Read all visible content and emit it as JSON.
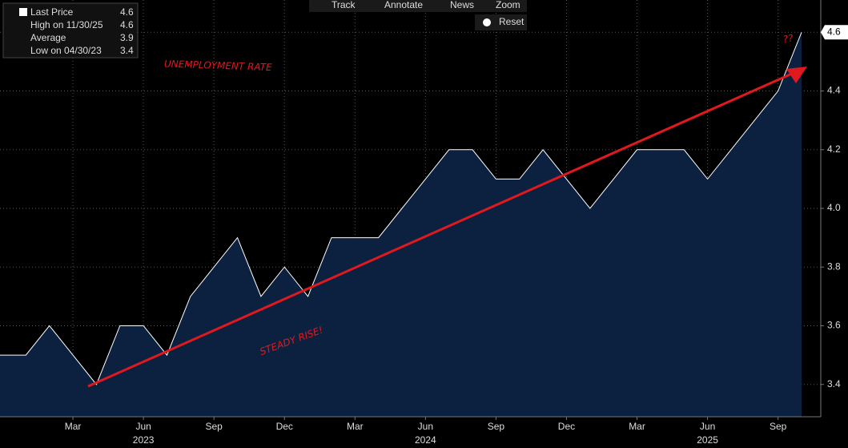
{
  "chart_data": {
    "type": "area",
    "toolbar": [
      "Track",
      "Annotate",
      "News",
      "Zoom",
      "Reset"
    ],
    "legend": [
      {
        "label": "Last Price",
        "value": 4.6
      },
      {
        "label": "High on 11/30/25",
        "value": 4.6
      },
      {
        "label": "Average",
        "value": 3.9
      },
      {
        "label": "Low on 04/30/23",
        "value": 3.4
      }
    ],
    "annotations": [
      "UNEMPLOYMENT RATE",
      "STEADY RISE!",
      "??"
    ],
    "categories": [
      null,
      null,
      null,
      "Mar",
      null,
      null,
      "Jun",
      null,
      null,
      "Sep",
      null,
      null,
      "Dec",
      null,
      null,
      "Mar",
      null,
      null,
      "Jun",
      null,
      null,
      "Sep",
      null,
      null,
      "Dec",
      null,
      null,
      "Mar",
      null,
      null,
      "Jun",
      null,
      null,
      "Sep",
      null
    ],
    "years": [
      "2023",
      "2024",
      "2025"
    ],
    "series": [
      {
        "name": "Last Price",
        "color": "#ffffff",
        "fill": "#0c2140",
        "values": [
          3.5,
          3.5,
          3.6,
          3.5,
          3.4,
          3.6,
          3.6,
          3.5,
          3.7,
          3.8,
          3.9,
          3.7,
          3.8,
          3.7,
          3.9,
          3.9,
          3.9,
          4.0,
          4.1,
          4.2,
          4.2,
          4.1,
          4.1,
          4.2,
          4.1,
          4.0,
          4.1,
          4.2,
          4.2,
          4.2,
          4.1,
          4.2,
          4.3,
          4.4,
          4.6
        ]
      }
    ],
    "last_value": 4.6,
    "ylim": [
      3.29,
      4.71
    ],
    "yticks": [
      3.4,
      3.6,
      3.8,
      {
        "value": 4,
        "label": "4.0"
      },
      4.2,
      4.4,
      4.6
    ],
    "grid": true
  }
}
